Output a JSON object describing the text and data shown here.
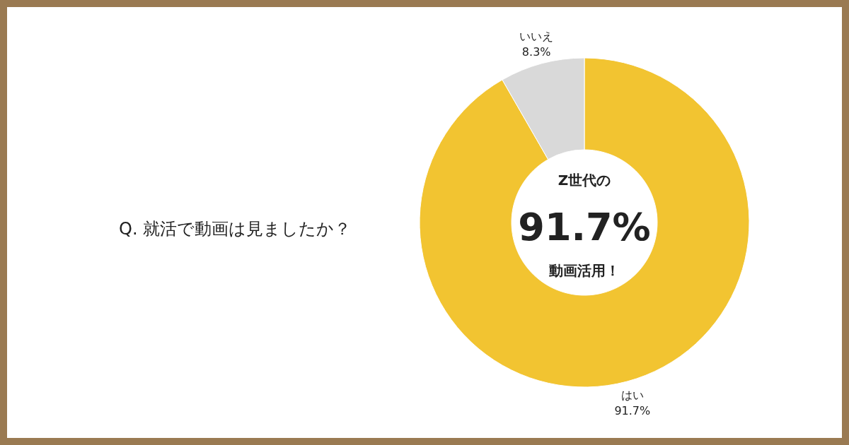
{
  "chart_data": {
    "type": "donut",
    "title": "Q. 就活で動画は見ましたか？",
    "categories": [
      "はい",
      "いいえ"
    ],
    "values": [
      91.7,
      8.3
    ],
    "colors": [
      "#f2c431",
      "#d9d9d9"
    ],
    "value_labels": [
      "91.7%",
      "8.3%"
    ],
    "annotations": [
      "Z世代の",
      "91.7%",
      "動画活用！"
    ]
  }
}
